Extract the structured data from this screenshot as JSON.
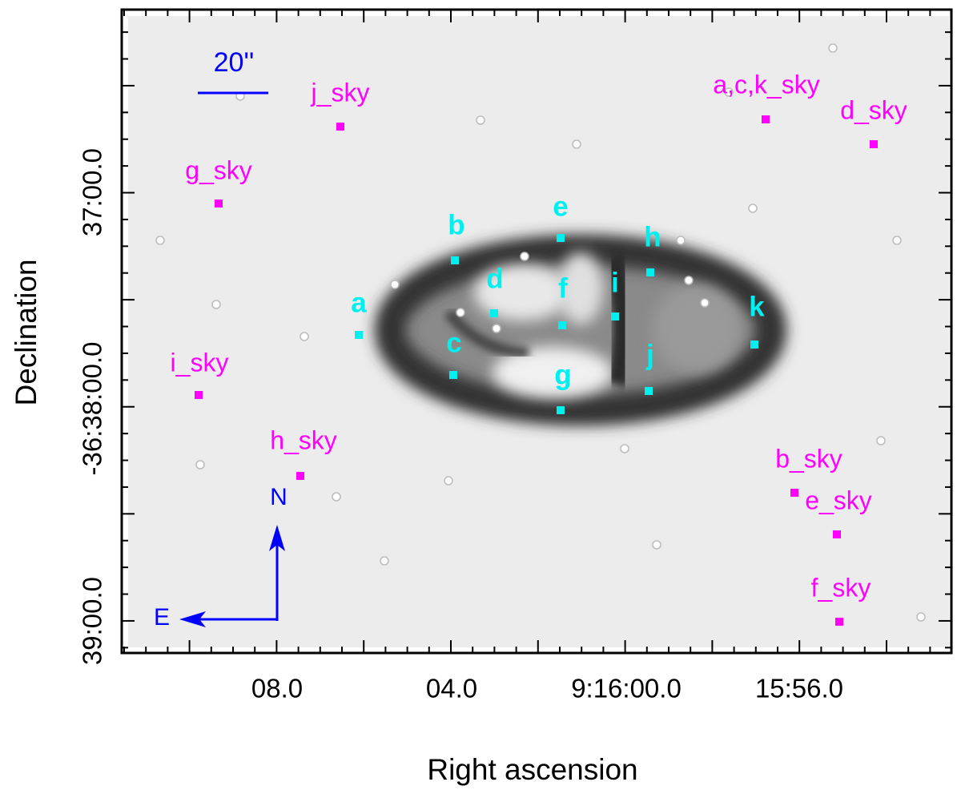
{
  "axes": {
    "x_label": "Right ascension",
    "y_label": "Declination",
    "x_ticks": [
      "08.0",
      "04.0",
      "9:16:00.0",
      "15:56.0"
    ],
    "y_ticks": [
      "37:00.0",
      "-36:38:00.0",
      "39:00.0"
    ]
  },
  "scale_bar": "20''",
  "compass": {
    "north": "N",
    "east": "E"
  },
  "apertures": [
    "a",
    "b",
    "c",
    "d",
    "e",
    "f",
    "g",
    "h",
    "i",
    "j",
    "k"
  ],
  "sky_regions": [
    "j_sky",
    "a,c,k_sky",
    "d_sky",
    "g_sky",
    "i_sky",
    "h_sky",
    "b_sky",
    "e_sky",
    "f_sky"
  ]
}
